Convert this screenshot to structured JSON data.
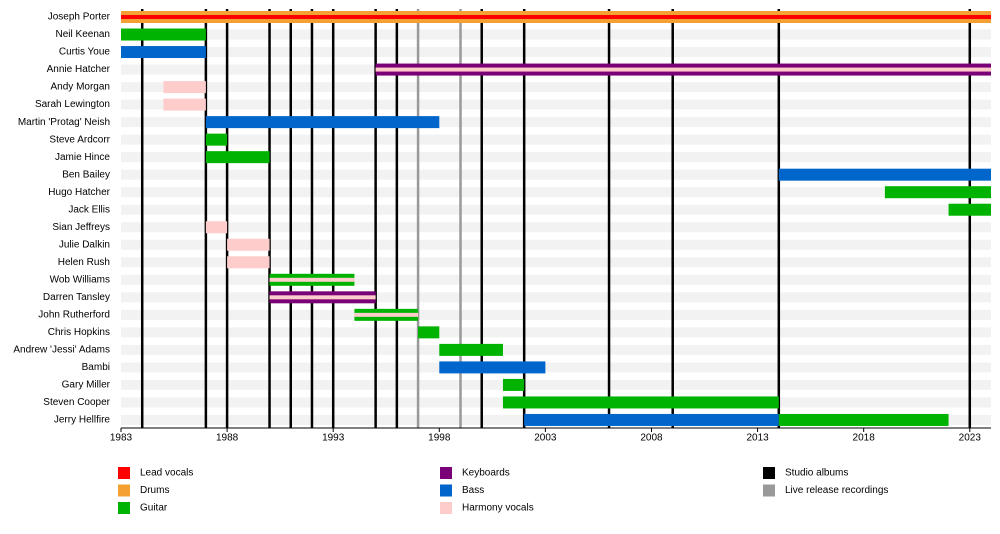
{
  "chart_data": {
    "type": "timeline",
    "xlim": [
      1983,
      2024
    ],
    "xticks": [
      1983,
      1988,
      1993,
      1998,
      2003,
      2008,
      2013,
      2018,
      2023
    ],
    "roles": [
      {
        "name": "Lead vocals",
        "color": "#ff0000"
      },
      {
        "name": "Drums",
        "color": "#f5a033"
      },
      {
        "name": "Guitar",
        "color": "#00b300"
      },
      {
        "name": "Keyboards",
        "color": "#7a0077"
      },
      {
        "name": "Bass",
        "color": "#0066cc"
      },
      {
        "name": "Harmony vocals",
        "color": "#ffcccc"
      }
    ],
    "events": [
      {
        "name": "Studio albums",
        "color": "#000000",
        "x": [
          1984,
          1987,
          1988,
          1990,
          1991,
          1992,
          1993,
          1995,
          1996,
          2000,
          2002,
          2006,
          2009,
          2014,
          2023
        ]
      },
      {
        "name": "Live release recordings",
        "color": "#999999",
        "x": [
          1997,
          1999
        ]
      }
    ],
    "members": [
      {
        "name": "Joseph Porter",
        "spans": [
          {
            "start": 1983,
            "end": 2024,
            "roles": [
              "Drums",
              "Lead vocals"
            ]
          }
        ]
      },
      {
        "name": "Neil Keenan",
        "spans": [
          {
            "start": 1983,
            "end": 1987,
            "roles": [
              "Guitar"
            ]
          }
        ]
      },
      {
        "name": "Curtis Youe",
        "spans": [
          {
            "start": 1983,
            "end": 1987,
            "roles": [
              "Bass"
            ]
          }
        ]
      },
      {
        "name": "Annie Hatcher",
        "spans": [
          {
            "start": 1995,
            "end": 2024,
            "roles": [
              "Keyboards",
              "Harmony vocals"
            ]
          }
        ]
      },
      {
        "name": "Andy Morgan",
        "spans": [
          {
            "start": 1985,
            "end": 1987,
            "roles": [
              "Harmony vocals"
            ]
          }
        ]
      },
      {
        "name": "Sarah Lewington",
        "spans": [
          {
            "start": 1985,
            "end": 1987,
            "roles": [
              "Harmony vocals"
            ]
          }
        ]
      },
      {
        "name": "Martin 'Protag' Neish",
        "spans": [
          {
            "start": 1987,
            "end": 1998,
            "roles": [
              "Bass"
            ]
          }
        ]
      },
      {
        "name": "Steve Ardcorr",
        "spans": [
          {
            "start": 1987,
            "end": 1988,
            "roles": [
              "Guitar"
            ]
          }
        ]
      },
      {
        "name": "Jamie Hince",
        "spans": [
          {
            "start": 1987,
            "end": 1990,
            "roles": [
              "Guitar"
            ]
          }
        ]
      },
      {
        "name": "Ben Bailey",
        "spans": [
          {
            "start": 2014,
            "end": 2024,
            "roles": [
              "Bass"
            ]
          }
        ]
      },
      {
        "name": "Hugo Hatcher",
        "spans": [
          {
            "start": 2019,
            "end": 2024,
            "roles": [
              "Guitar"
            ]
          }
        ]
      },
      {
        "name": "Jack Ellis",
        "spans": [
          {
            "start": 2022,
            "end": 2024,
            "roles": [
              "Guitar"
            ]
          }
        ]
      },
      {
        "name": "Sian Jeffreys",
        "spans": [
          {
            "start": 1987,
            "end": 1988,
            "roles": [
              "Harmony vocals"
            ]
          }
        ]
      },
      {
        "name": "Julie Dalkin",
        "spans": [
          {
            "start": 1988,
            "end": 1990,
            "roles": [
              "Harmony vocals"
            ]
          }
        ]
      },
      {
        "name": "Helen Rush",
        "spans": [
          {
            "start": 1988,
            "end": 1990,
            "roles": [
              "Harmony vocals"
            ]
          }
        ]
      },
      {
        "name": "Wob Williams",
        "spans": [
          {
            "start": 1990,
            "end": 1994,
            "roles": [
              "Guitar",
              "Harmony vocals"
            ]
          }
        ]
      },
      {
        "name": "Darren Tansley",
        "spans": [
          {
            "start": 1990,
            "end": 1995,
            "roles": [
              "Keyboards",
              "Harmony vocals"
            ]
          }
        ]
      },
      {
        "name": "John Rutherford",
        "spans": [
          {
            "start": 1994,
            "end": 1997,
            "roles": [
              "Guitar",
              "Harmony vocals"
            ]
          }
        ]
      },
      {
        "name": "Chris Hopkins",
        "spans": [
          {
            "start": 1997,
            "end": 1998,
            "roles": [
              "Guitar"
            ]
          }
        ]
      },
      {
        "name": "Andrew 'Jessi' Adams",
        "spans": [
          {
            "start": 1998,
            "end": 2001,
            "roles": [
              "Guitar"
            ]
          }
        ]
      },
      {
        "name": "Bambi",
        "spans": [
          {
            "start": 1998,
            "end": 2003,
            "roles": [
              "Bass"
            ]
          }
        ]
      },
      {
        "name": "Gary Miller",
        "spans": [
          {
            "start": 2001,
            "end": 2002,
            "roles": [
              "Guitar"
            ]
          }
        ]
      },
      {
        "name": "Steven Cooper",
        "spans": [
          {
            "start": 2001,
            "end": 2014,
            "roles": [
              "Guitar"
            ]
          }
        ]
      },
      {
        "name": "Jerry Hellfire",
        "spans": [
          {
            "start": 2002,
            "end": 2014,
            "roles": [
              "Bass"
            ]
          },
          {
            "start": 2014,
            "end": 2022,
            "roles": [
              "Guitar"
            ]
          }
        ]
      }
    ]
  }
}
